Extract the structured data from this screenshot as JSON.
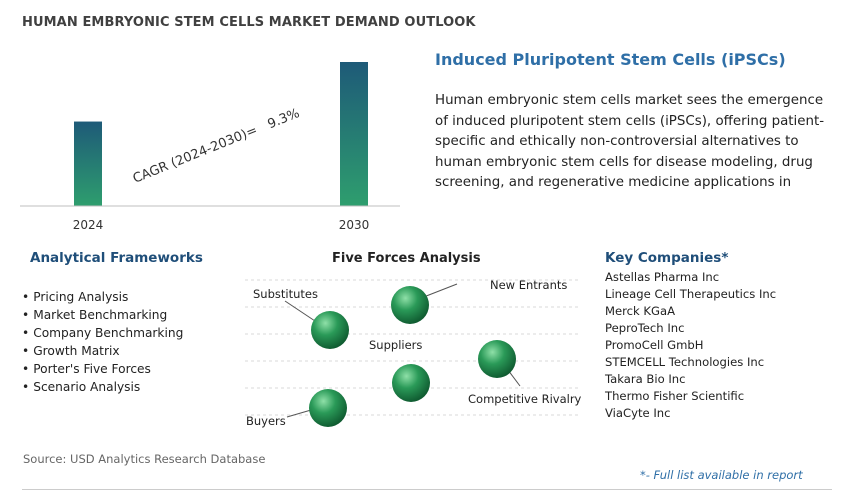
{
  "title": "HUMAN EMBRYONIC STEM CELLS MARKET DEMAND OUTLOOK",
  "chart_data": {
    "type": "bar",
    "categories": [
      "2024",
      "2030"
    ],
    "values": [
      1,
      1.705
    ],
    "value_note": "relative bar heights only; no value labels printed",
    "annotation": "CAGR (2024-2030)=   9.3%",
    "cagr": 9.3,
    "colors": [
      "#1e5a78",
      "#2e9e6e"
    ],
    "grid": false
  },
  "info": {
    "heading": "Induced Pluripotent Stem Cells (iPSCs)",
    "text": "Human embryonic stem cells market sees the emergence of induced pluripotent stem cells (iPSCs), offering patient-specific and ethically non-controversial alternatives to human embryonic stem cells for disease modeling, drug screening, and regenerative medicine applications in preclinical research, cell therapy and regenerative medicine development."
  },
  "frameworks": {
    "title": "Analytical Frameworks",
    "items": [
      "Pricing Analysis",
      "Market Benchmarking",
      "Company Benchmarking",
      "Growth Matrix",
      "Porter's Five Forces",
      "Scenario Analysis"
    ]
  },
  "five_forces": {
    "title": "Five Forces Analysis",
    "labels": {
      "substitutes": "Substitutes",
      "new_entrants": "New Entrants",
      "suppliers": "Suppliers",
      "competitive_rivalry": "Competitive Rivalry",
      "buyers": "Buyers"
    },
    "sphere_colors": [
      "#8fe0a8",
      "#2a9a58",
      "#0f5a30"
    ]
  },
  "companies": {
    "title": "Key Companies*",
    "items": [
      "Astellas Pharma Inc",
      "Lineage Cell Therapeutics Inc",
      "Merck KGaA",
      "PeproTech Inc",
      "PromoCell GmbH",
      "STEMCELL Technologies Inc",
      "Takara Bio Inc",
      "Thermo Fisher Scientific",
      "ViaCyte Inc"
    ]
  },
  "source": "Source: USD Analytics Research Database",
  "footnote": "*- Full list available in report"
}
